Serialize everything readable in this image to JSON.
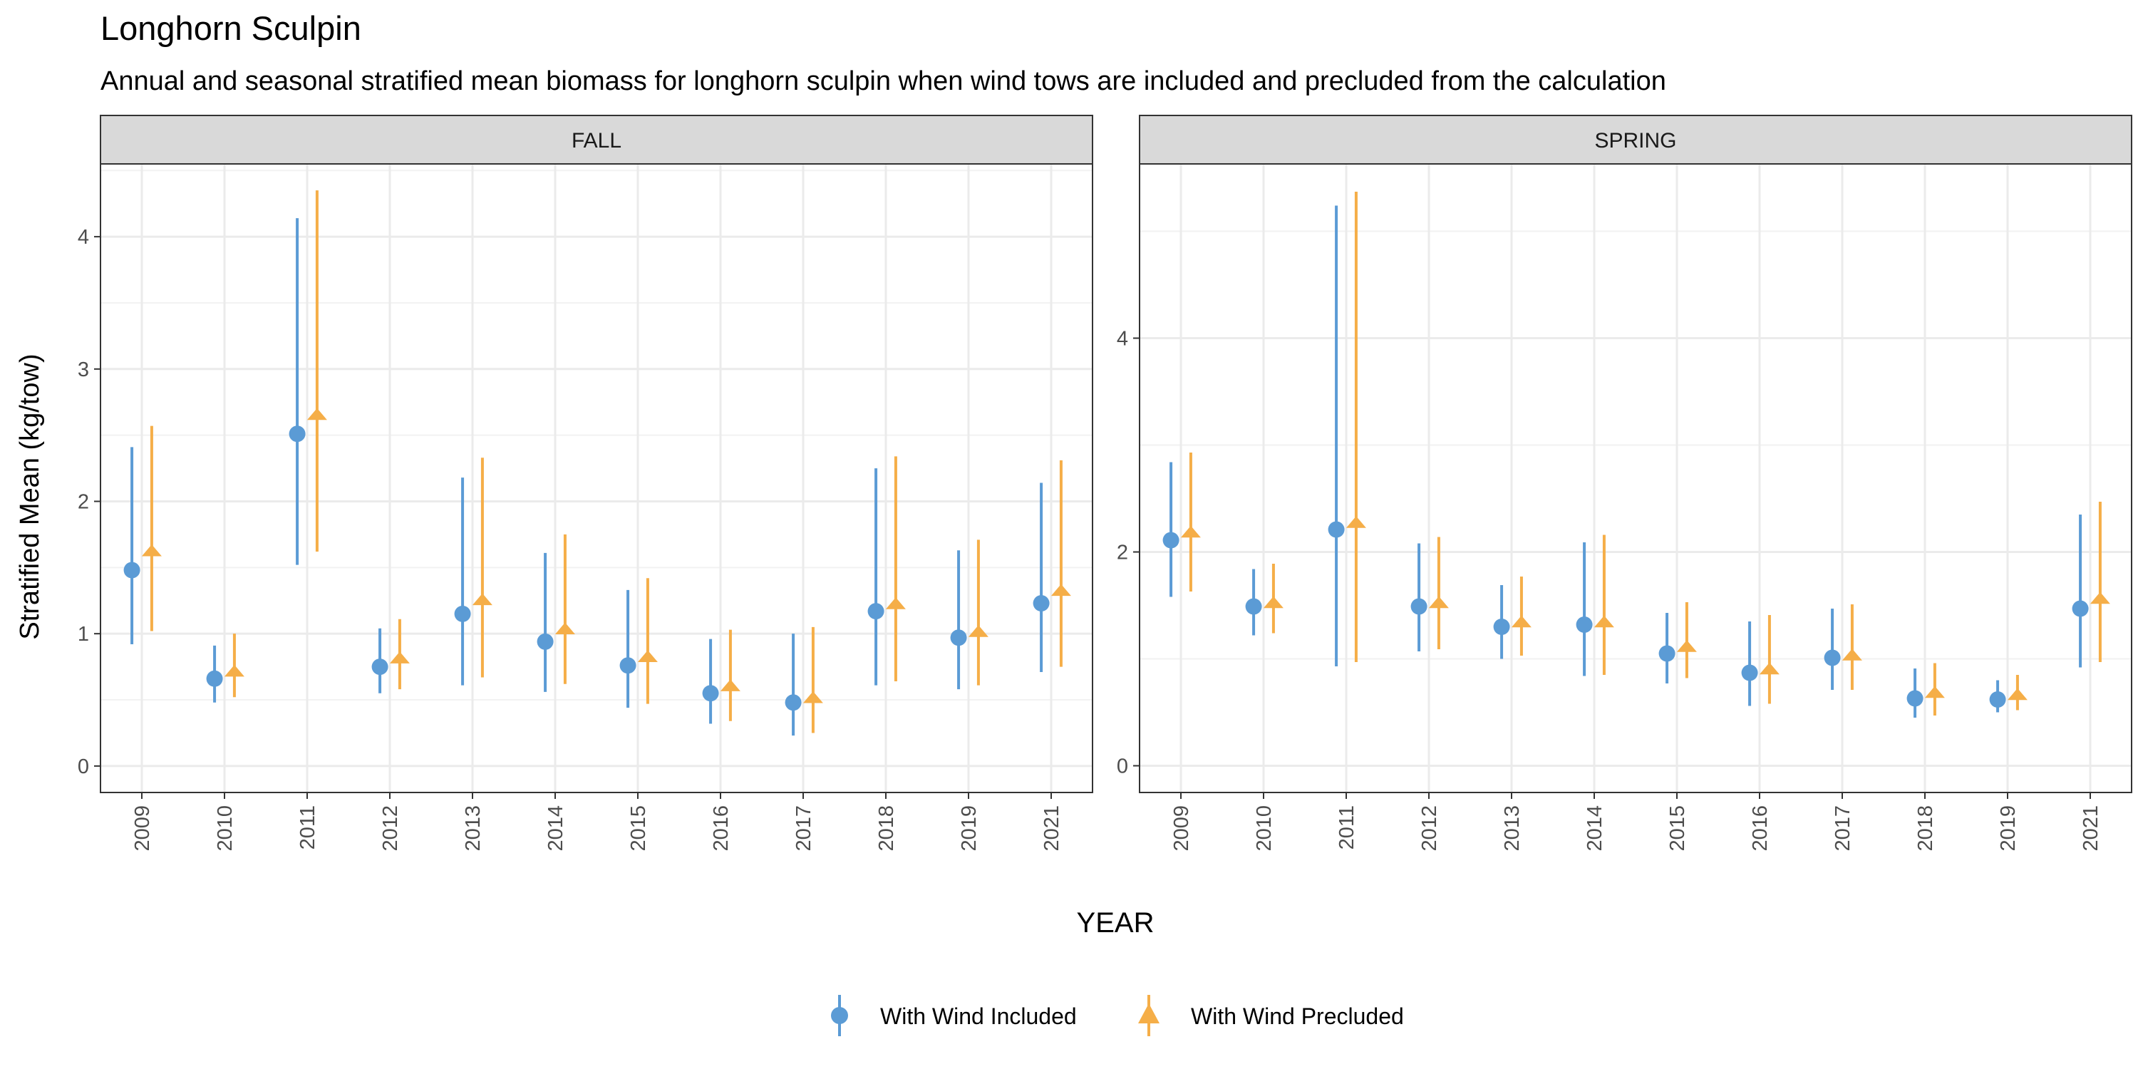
{
  "chart_data": {
    "type": "scatter",
    "title": "Longhorn Sculpin",
    "subtitle": "Annual and seasonal stratified mean biomass for longhorn sculpin when wind tows are included and precluded from the calculation",
    "xlabel": "YEAR",
    "ylabel": "Stratified Mean (kg/tow)",
    "categories": [
      "2009",
      "2010",
      "2011",
      "2012",
      "2013",
      "2014",
      "2015",
      "2016",
      "2017",
      "2018",
      "2019",
      "2021"
    ],
    "grid": true,
    "legend_position": "bottom",
    "colors": {
      "included": "#5b9bd5",
      "precluded": "#f5ae48"
    },
    "series_names": [
      "With Wind Included",
      "With Wind Precluded"
    ],
    "panels": [
      {
        "name": "FALL",
        "ylim": [
          -0.2,
          4.55
        ],
        "yticks": [
          0,
          1,
          2,
          3,
          4
        ],
        "series": [
          {
            "name": "With Wind Included",
            "values": [
              1.48,
              0.66,
              2.51,
              0.75,
              1.15,
              0.94,
              0.76,
              0.55,
              0.48,
              1.17,
              0.97,
              1.23
            ],
            "lower": [
              0.92,
              0.48,
              1.52,
              0.55,
              0.61,
              0.56,
              0.44,
              0.32,
              0.23,
              0.61,
              0.58,
              0.71
            ],
            "upper": [
              2.41,
              0.91,
              4.14,
              1.04,
              2.18,
              1.61,
              1.33,
              0.96,
              1.0,
              2.25,
              1.63,
              2.14
            ]
          },
          {
            "name": "With Wind Precluded",
            "values": [
              1.63,
              0.72,
              2.66,
              0.82,
              1.26,
              1.04,
              0.83,
              0.61,
              0.52,
              1.23,
              1.02,
              1.33
            ],
            "lower": [
              1.02,
              0.52,
              1.62,
              0.58,
              0.67,
              0.62,
              0.47,
              0.34,
              0.25,
              0.64,
              0.61,
              0.75
            ],
            "upper": [
              2.57,
              1.0,
              4.35,
              1.11,
              2.33,
              1.75,
              1.42,
              1.03,
              1.05,
              2.34,
              1.71,
              2.31
            ]
          }
        ]
      },
      {
        "name": "SPRING",
        "ylim": [
          -0.25,
          5.63
        ],
        "yticks": [
          0,
          2,
          4
        ],
        "series": [
          {
            "name": "With Wind Included",
            "values": [
              2.11,
              1.49,
              2.21,
              1.49,
              1.3,
              1.32,
              1.05,
              0.87,
              1.01,
              0.63,
              0.62,
              1.47
            ],
            "lower": [
              1.58,
              1.22,
              0.93,
              1.07,
              1.0,
              0.84,
              0.77,
              0.56,
              0.71,
              0.45,
              0.5,
              0.92
            ],
            "upper": [
              2.84,
              1.84,
              5.24,
              2.08,
              1.69,
              2.09,
              1.43,
              1.35,
              1.47,
              0.91,
              0.8,
              2.35
            ]
          },
          {
            "name": "With Wind Precluded",
            "values": [
              2.19,
              1.53,
              2.28,
              1.53,
              1.35,
              1.35,
              1.12,
              0.91,
              1.04,
              0.69,
              0.67,
              1.57
            ],
            "lower": [
              1.63,
              1.24,
              0.97,
              1.09,
              1.03,
              0.85,
              0.82,
              0.58,
              0.71,
              0.47,
              0.52,
              0.97
            ],
            "upper": [
              2.93,
              1.89,
              5.37,
              2.14,
              1.77,
              2.16,
              1.53,
              1.41,
              1.51,
              0.96,
              0.85,
              2.47
            ]
          }
        ]
      }
    ]
  }
}
